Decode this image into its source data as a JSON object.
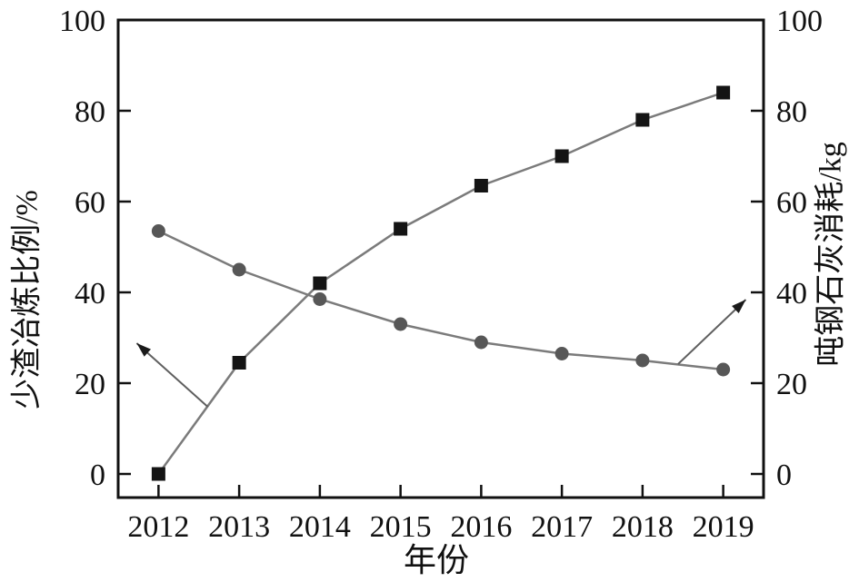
{
  "chart_data": {
    "type": "line",
    "title": "",
    "xlabel": "年份",
    "x": [
      2012,
      2013,
      2014,
      2015,
      2016,
      2017,
      2018,
      2019
    ],
    "x_tick_labels": [
      "2012",
      "2013",
      "2014",
      "2015",
      "2016",
      "2017",
      "2018",
      "2019"
    ],
    "left_axis": {
      "label": "少渣冶炼比例/%",
      "ticks": [
        0,
        20,
        40,
        60,
        80,
        100
      ],
      "range": [
        -5.2,
        100
      ]
    },
    "right_axis": {
      "label": "吨钢石灰消耗/kg",
      "ticks": [
        0,
        20,
        40,
        60,
        80,
        100
      ],
      "range": [
        -5.2,
        100
      ]
    },
    "grid": false,
    "legend": null,
    "background": "#ffffff",
    "frame_color": "#111111",
    "text_color": "#111111",
    "series": [
      {
        "name": "少渣冶炼比例",
        "axis": "left",
        "marker": "square",
        "marker_color": "#141414",
        "line_color": "#7b7b7b",
        "values": [
          0,
          24.5,
          42,
          54,
          63.5,
          70,
          78,
          84
        ]
      },
      {
        "name": "吨钢石灰消耗",
        "axis": "right",
        "marker": "circle",
        "marker_color": "#575757",
        "line_color": "#7b7b7b",
        "values": [
          53.5,
          45,
          38.5,
          33,
          29,
          26.5,
          25,
          23
        ]
      }
    ],
    "annotations": [
      {
        "type": "arrow",
        "points_to": "left-axis",
        "from_xy": [
          2012.61,
          14.8
        ],
        "to_xy": [
          2011.73,
          28.8
        ]
      },
      {
        "type": "arrow",
        "points_to": "right-axis",
        "from_xy": [
          2018.44,
          24.2
        ],
        "to_xy": [
          2019.28,
          38.4
        ]
      }
    ]
  }
}
